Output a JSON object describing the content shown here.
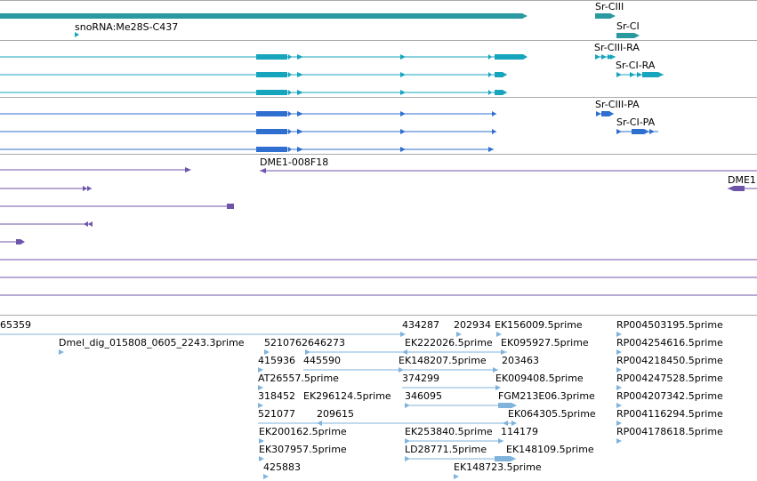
{
  "colors": {
    "gene": "#2a9aa0",
    "transcript_teal": "#17a5be",
    "transcript_blue": "#2f6fcf",
    "purple": "#6f55a8",
    "est": "#7fb3dc",
    "separator": "#aaaaaa"
  },
  "tracks": {
    "genes": [
      {
        "label": "Sr-CIII"
      },
      {
        "label": "Sr-CI"
      },
      {
        "label": "snoRNA:Me28S-C437"
      }
    ],
    "rna_transcripts": [
      {
        "label": "Sr-CIII-RA"
      },
      {
        "label": "Sr-CI-RA"
      }
    ],
    "protein_transcripts": [
      {
        "label": "Sr-CIII-PA"
      },
      {
        "label": "Sr-CI-PA"
      }
    ],
    "clones": [
      {
        "label": "DME1-008F18"
      },
      {
        "label": "DME1"
      }
    ],
    "ests": [
      {
        "label": "65359"
      },
      {
        "label": "Dmel_dig_015808_0605_2243.3prime"
      },
      {
        "label": "434287"
      },
      {
        "label": "202934"
      },
      {
        "label": "EK156009.5prime"
      },
      {
        "label": "RP004503195.5prime"
      },
      {
        "label": "5210762646273"
      },
      {
        "label": "EK222026.5prime"
      },
      {
        "label": "EK095927.5prime"
      },
      {
        "label": "RP004254616.5prime"
      },
      {
        "label": "415936"
      },
      {
        "label": "445590"
      },
      {
        "label": "EK148207.5prime"
      },
      {
        "label": "203463"
      },
      {
        "label": "RP004218450.5prime"
      },
      {
        "label": "AT26557.5prime"
      },
      {
        "label": "374299"
      },
      {
        "label": "EK009408.5prime"
      },
      {
        "label": "RP004247528.5prime"
      },
      {
        "label": "318452"
      },
      {
        "label": "EK296124.5prime"
      },
      {
        "label": "346095"
      },
      {
        "label": "FGM213E06.3prime"
      },
      {
        "label": "RP004207342.5prime"
      },
      {
        "label": "521077"
      },
      {
        "label": "209615"
      },
      {
        "label": "EK064305.5prime"
      },
      {
        "label": "RP004116294.5prime"
      },
      {
        "label": "EK200162.5prime"
      },
      {
        "label": "EK253840.5prime"
      },
      {
        "label": "114179"
      },
      {
        "label": "RP004178618.5prime"
      },
      {
        "label": "EK307957.5prime"
      },
      {
        "label": "LD28771.5prime"
      },
      {
        "label": "EK148109.5prime"
      },
      {
        "label": "425883"
      },
      {
        "label": "EK148723.5prime"
      }
    ]
  }
}
